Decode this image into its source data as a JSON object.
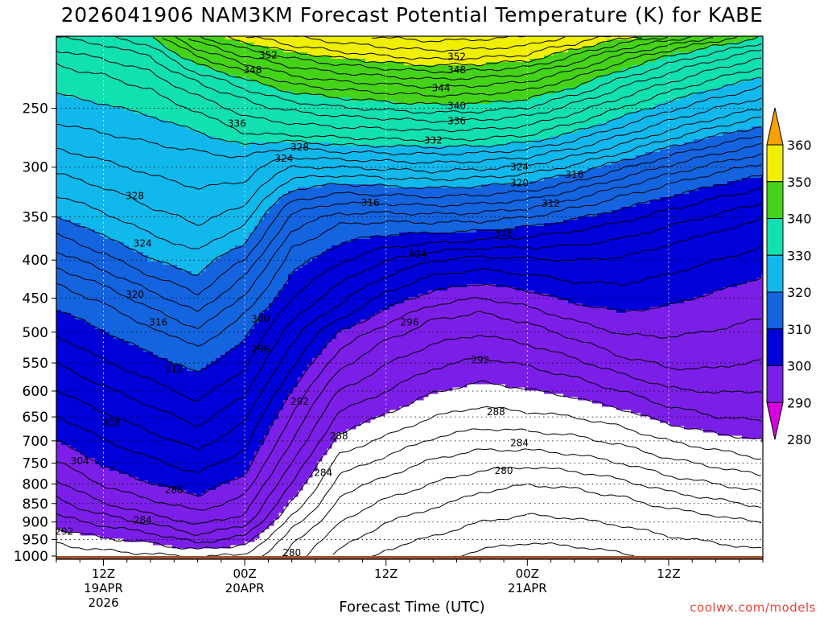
{
  "chart_data": {
    "type": "contour",
    "title": "2026041906 NAM3KM Forecast Potential Temperature (K) for KABE",
    "xlabel": "Forecast Time (UTC)",
    "ylabel": "",
    "credit": "coolwx.com/models",
    "x_ticks": [
      {
        "hour": 6,
        "label": "12Z",
        "date": "19APR",
        "year": "2026"
      },
      {
        "hour": 24,
        "label": "00Z",
        "date": "20APR",
        "year": ""
      },
      {
        "hour": 42,
        "label": "12Z",
        "date": "",
        "year": ""
      },
      {
        "hour": 60,
        "label": "00Z",
        "date": "21APR",
        "year": ""
      },
      {
        "hour": 78,
        "label": "12Z",
        "date": "",
        "year": ""
      }
    ],
    "xlim_hours": [
      0,
      90
    ],
    "y_ticks": [
      250,
      300,
      350,
      400,
      450,
      500,
      550,
      600,
      650,
      700,
      750,
      800,
      850,
      900,
      950,
      1000
    ],
    "ylim_hpa": [
      1010,
      200
    ],
    "y_scale": "log-pressure",
    "colorbar": {
      "levels": [
        280,
        290,
        300,
        310,
        320,
        330,
        340,
        350,
        360
      ],
      "labels": [
        "280",
        "290",
        "300",
        "310",
        "320",
        "330",
        "340",
        "350",
        "360"
      ],
      "colors": [
        "#d700e0",
        "#7b1fe8",
        "#0000d8",
        "#1464e0",
        "#11b8ec",
        "#11e0b0",
        "#44d318",
        "#f0ef00",
        "#f7a100"
      ],
      "extend": "both"
    },
    "ground_color": "#a0522d",
    "contour_interval_k": 2,
    "surface_isentropes": [
      {
        "theta": 352,
        "p": [
          null,
          null,
          null,
          null,
          200,
          206,
          210,
          213,
          215,
          214,
          212,
          205,
          200,
          null,
          null,
          null
        ]
      },
      {
        "theta": 348,
        "p": [
          null,
          null,
          null,
          200,
          208,
          214,
          218,
          221,
          223,
          222,
          220,
          212,
          204,
          200,
          null,
          null
        ]
      },
      {
        "theta": 344,
        "p": [
          null,
          null,
          null,
          208,
          218,
          226,
          230,
          232,
          234,
          233,
          230,
          222,
          212,
          206,
          200,
          null
        ]
      },
      {
        "theta": 340,
        "p": [
          null,
          null,
          200,
          218,
          228,
          238,
          242,
          245,
          247,
          246,
          243,
          234,
          222,
          212,
          206,
          200
        ]
      },
      {
        "theta": 336,
        "p": [
          200,
          205,
          212,
          230,
          243,
          252,
          256,
          258,
          260,
          259,
          256,
          246,
          234,
          224,
          215,
          208
        ]
      },
      {
        "theta": 332,
        "p": [
          218,
          225,
          235,
          252,
          270,
          272,
          274,
          275,
          276,
          275,
          272,
          262,
          250,
          238,
          228,
          220
        ]
      },
      {
        "theta": 328,
        "p": [
          262,
          270,
          278,
          285,
          290,
          282,
          286,
          287,
          288,
          287,
          284,
          276,
          264,
          252,
          242,
          234
        ]
      },
      {
        "theta": 324,
        "p": [
          306,
          320,
          340,
          360,
          340,
          300,
          300,
          302,
          304,
          302,
          298,
          290,
          280,
          268,
          258,
          250
        ]
      },
      {
        "theta": 320,
        "p": [
          350,
          372,
          400,
          420,
          380,
          322,
          316,
          318,
          320,
          318,
          315,
          306,
          294,
          282,
          272,
          264
        ]
      },
      {
        "theta": 316,
        "p": [
          390,
          412,
          440,
          470,
          420,
          346,
          335,
          336,
          338,
          336,
          332,
          322,
          310,
          298,
          288,
          280
        ]
      },
      {
        "theta": 312,
        "p": [
          430,
          455,
          490,
          520,
          470,
          385,
          358,
          355,
          356,
          355,
          350,
          340,
          328,
          316,
          305,
          296
        ]
      },
      {
        "theta": 308,
        "p": [
          505,
          545,
          580,
          620,
          560,
          450,
          405,
          385,
          380,
          376,
          372,
          365,
          355,
          342,
          330,
          320
        ]
      },
      {
        "theta": 304,
        "p": [
          600,
          640,
          680,
          720,
          660,
          520,
          460,
          420,
          400,
          395,
          398,
          400,
          395,
          380,
          365,
          352
        ]
      },
      {
        "theta": 300,
        "p": [
          700,
          760,
          800,
          830,
          780,
          600,
          500,
          465,
          440,
          430,
          440,
          458,
          470,
          460,
          440,
          420
        ]
      },
      {
        "theta": 296,
        "p": [
          790,
          850,
          880,
          910,
          880,
          700,
          560,
          510,
          480,
          470,
          485,
          510,
          540,
          560,
          560,
          545
        ]
      },
      {
        "theta": 292,
        "p": [
          880,
          910,
          930,
          960,
          940,
          800,
          640,
          600,
          560,
          540,
          555,
          575,
          600,
          630,
          650,
          660
        ]
      },
      {
        "theta": 288,
        "p": [
          960,
          980,
          990,
          1000,
          990,
          880,
          730,
          690,
          650,
          630,
          640,
          650,
          670,
          700,
          720,
          740
        ]
      },
      {
        "theta": 284,
        "p": [
          null,
          null,
          null,
          null,
          null,
          960,
          830,
          780,
          740,
          720,
          720,
          730,
          750,
          780,
          800,
          820
        ]
      },
      {
        "theta": 280,
        "p": [
          null,
          null,
          null,
          null,
          null,
          null,
          980,
          900,
          860,
          820,
          800,
          810,
          830,
          860,
          880,
          900
        ]
      }
    ],
    "time_grid_hours": [
      0,
      6,
      12,
      18,
      24,
      30,
      36,
      42,
      48,
      54,
      60,
      66,
      72,
      78,
      84,
      90
    ],
    "contour_labels": [
      {
        "text": "352",
        "hour": 27,
        "p": 212
      },
      {
        "text": "348",
        "hour": 25,
        "p": 222
      },
      {
        "text": "336",
        "hour": 23,
        "p": 262
      },
      {
        "text": "328",
        "hour": 31,
        "p": 282
      },
      {
        "text": "324",
        "hour": 29,
        "p": 292
      },
      {
        "text": "352",
        "hour": 51,
        "p": 213
      },
      {
        "text": "348",
        "hour": 51,
        "p": 222
      },
      {
        "text": "344",
        "hour": 49,
        "p": 235
      },
      {
        "text": "340",
        "hour": 51,
        "p": 248
      },
      {
        "text": "336",
        "hour": 51,
        "p": 260
      },
      {
        "text": "332",
        "hour": 48,
        "p": 276
      },
      {
        "text": "328",
        "hour": 10,
        "p": 328
      },
      {
        "text": "324",
        "hour": 11,
        "p": 380
      },
      {
        "text": "320",
        "hour": 10,
        "p": 445
      },
      {
        "text": "316",
        "hour": 13,
        "p": 485
      },
      {
        "text": "312",
        "hour": 15,
        "p": 560
      },
      {
        "text": "308",
        "hour": 7,
        "p": 662
      },
      {
        "text": "304",
        "hour": 3,
        "p": 745
      },
      {
        "text": "292",
        "hour": 1,
        "p": 927
      },
      {
        "text": "324",
        "hour": 59,
        "p": 300
      },
      {
        "text": "320",
        "hour": 59,
        "p": 315
      },
      {
        "text": "316",
        "hour": 66,
        "p": 307
      },
      {
        "text": "316",
        "hour": 40,
        "p": 335
      },
      {
        "text": "312",
        "hour": 63,
        "p": 336
      },
      {
        "text": "308",
        "hour": 57,
        "p": 368
      },
      {
        "text": "304",
        "hour": 46,
        "p": 393
      },
      {
        "text": "300",
        "hour": 26,
        "p": 480
      },
      {
        "text": "296",
        "hour": 26,
        "p": 527
      },
      {
        "text": "296",
        "hour": 45,
        "p": 485
      },
      {
        "text": "292",
        "hour": 54,
        "p": 545
      },
      {
        "text": "292",
        "hour": 31,
        "p": 620
      },
      {
        "text": "288",
        "hour": 56,
        "p": 640
      },
      {
        "text": "288",
        "hour": 36,
        "p": 690
      },
      {
        "text": "284",
        "hour": 59,
        "p": 705
      },
      {
        "text": "284",
        "hour": 34,
        "p": 773
      },
      {
        "text": "288",
        "hour": 15,
        "p": 815
      },
      {
        "text": "284",
        "hour": 11,
        "p": 895
      },
      {
        "text": "280",
        "hour": 57,
        "p": 768
      },
      {
        "text": "280",
        "hour": 30,
        "p": 990
      }
    ]
  }
}
